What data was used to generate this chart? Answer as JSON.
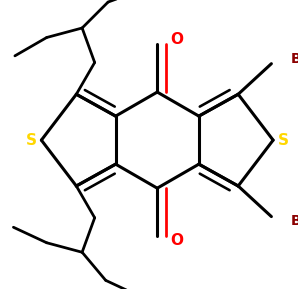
{
  "background": "#ffffff",
  "line_color": "#000000",
  "s_color": "#ffd700",
  "o_color": "#ff0000",
  "br_color": "#8b0000",
  "lw": 2.2,
  "figsize": [
    2.98,
    2.89
  ],
  "dpi": 100,
  "xlim": [
    -1.8,
    1.4
  ],
  "ylim": [
    -1.7,
    1.6
  ]
}
